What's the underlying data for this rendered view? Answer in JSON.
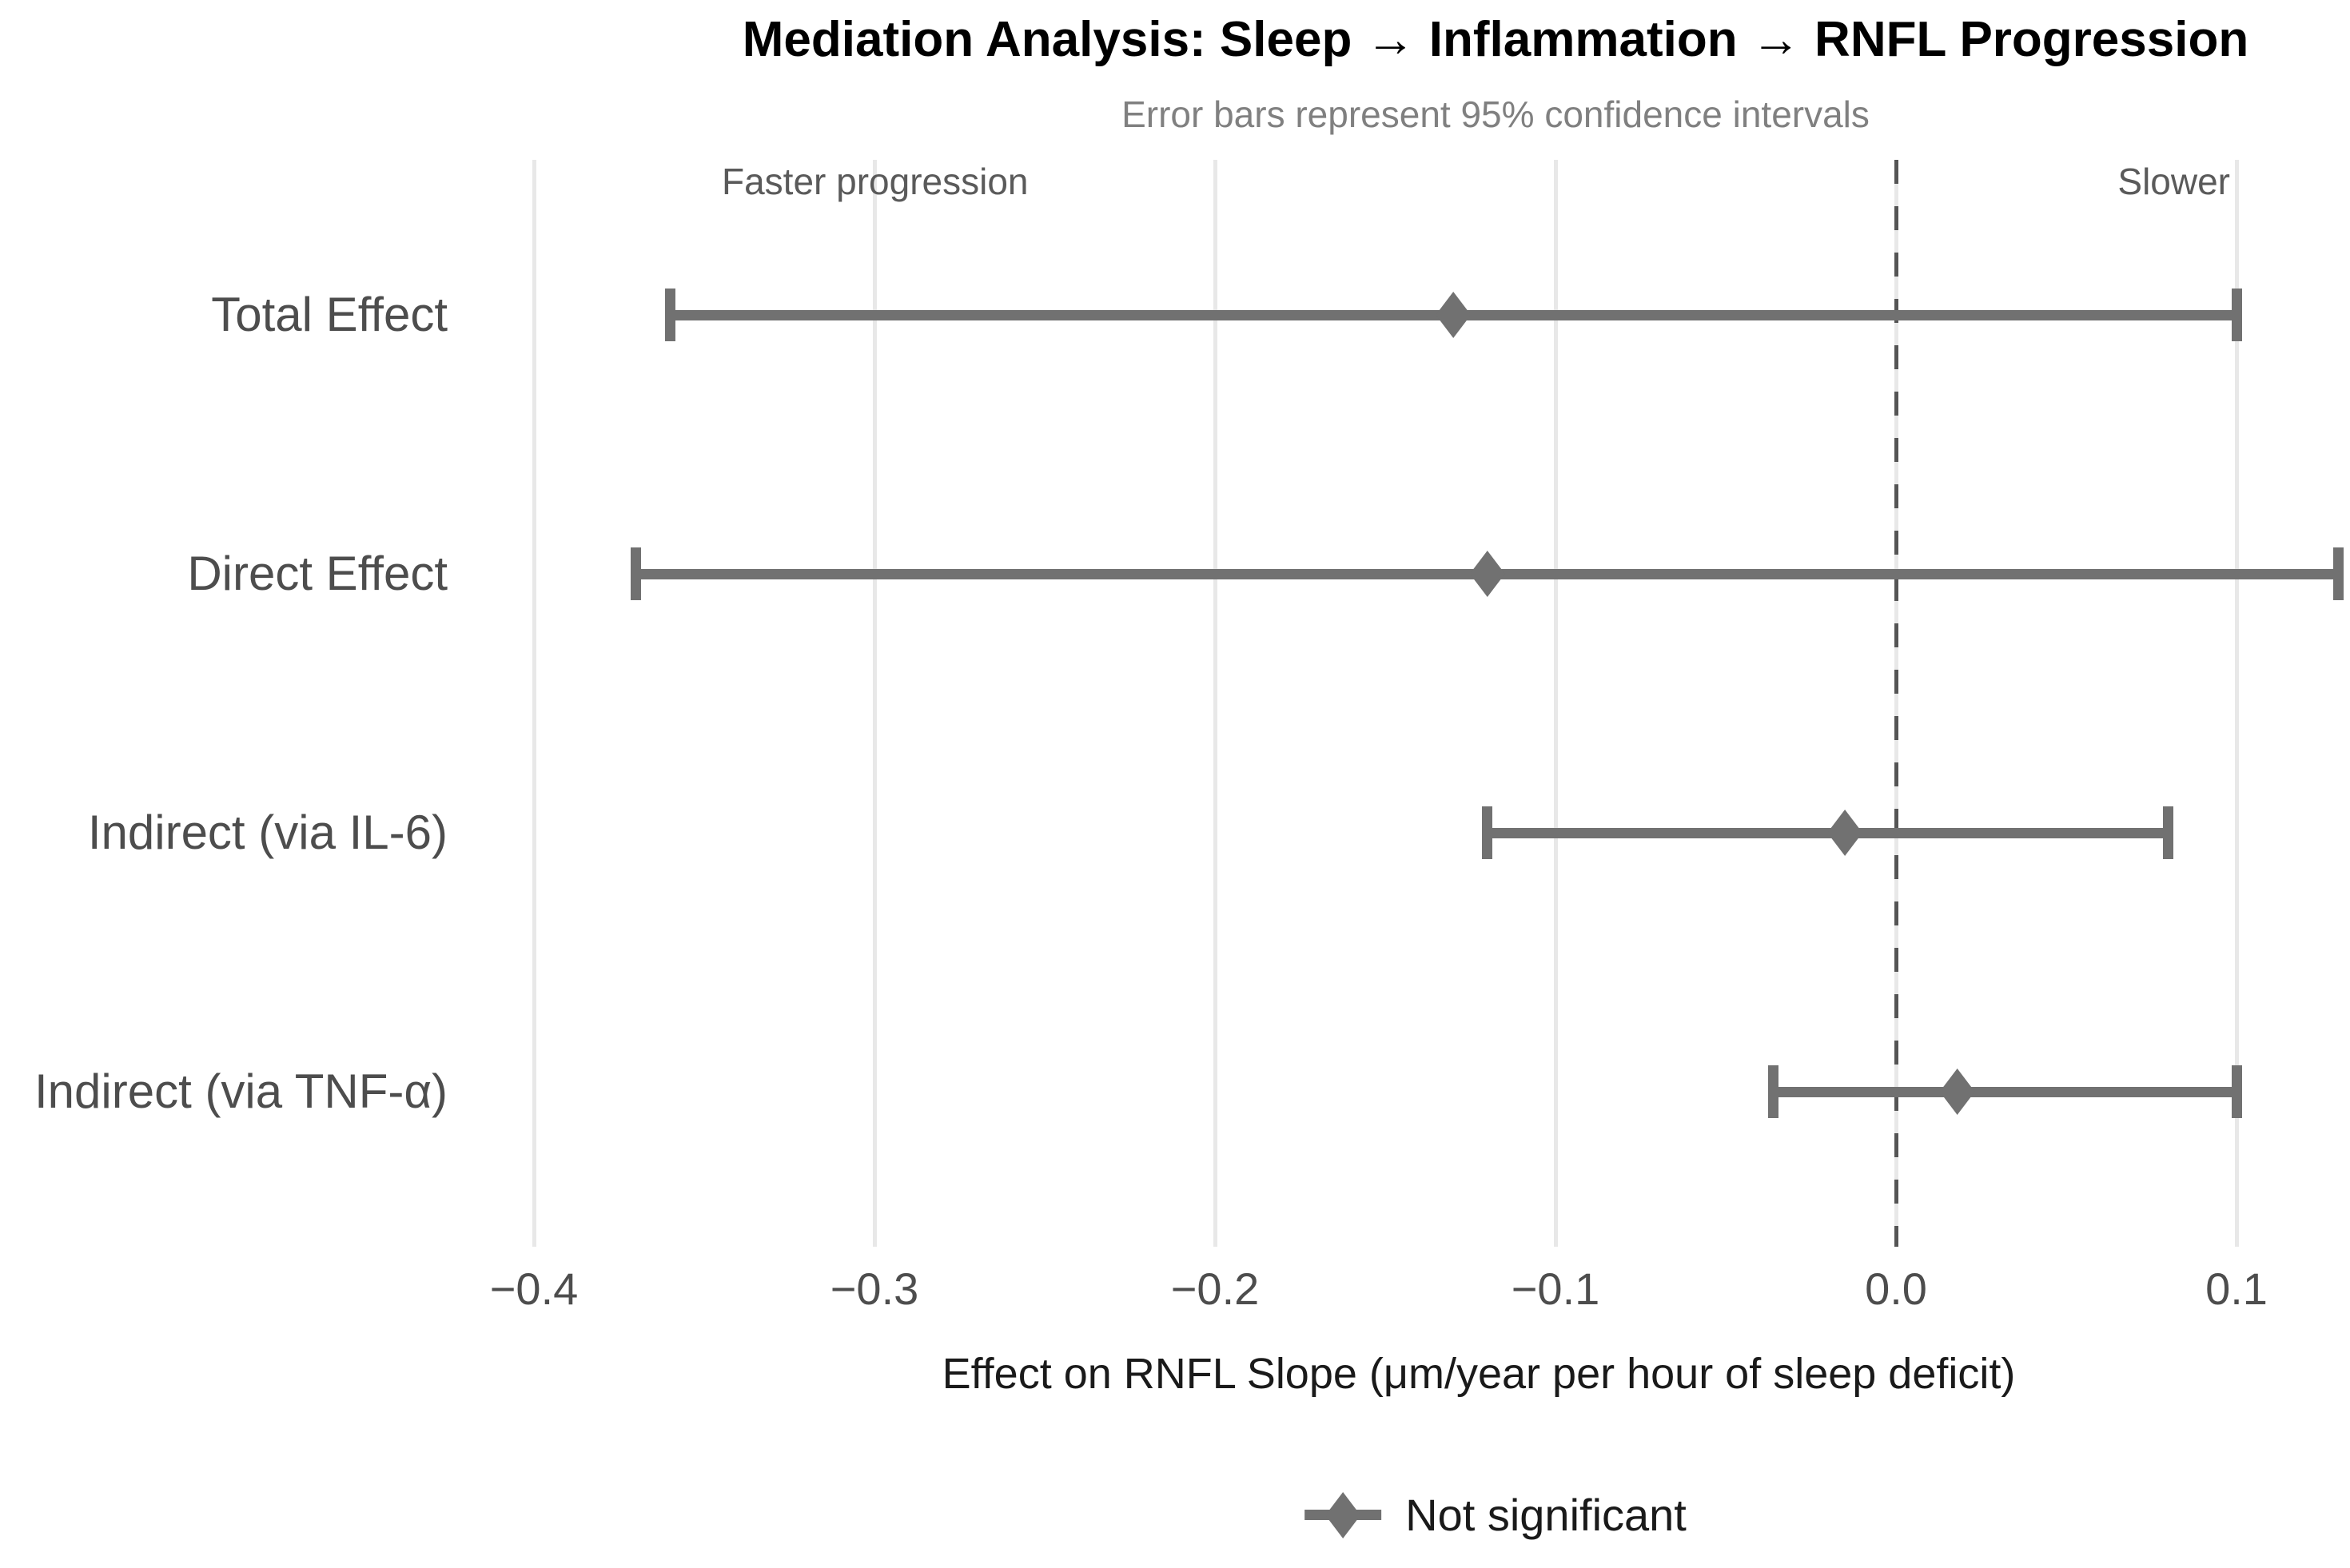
{
  "chart_data": {
    "type": "forest",
    "title": "Mediation Analysis: Sleep → Inflammation → RNFL Progression",
    "subtitle": "Error bars represent 95% confidence intervals",
    "xlabel": "Effect on RNFL Slope (μm/year per hour of sleep deficit)",
    "categories": [
      "Total Effect",
      "Direct Effect",
      "Indirect (via IL-6)",
      "Indirect (via TNF-α)"
    ],
    "series": [
      {
        "name": "Not significant",
        "marker": "diamond",
        "estimates": [
          -0.13,
          -0.12,
          -0.015,
          0.018
        ],
        "ci_low": [
          -0.36,
          -0.37,
          -0.12,
          -0.036
        ],
        "ci_high": [
          0.1,
          0.13,
          0.08,
          0.1
        ]
      }
    ],
    "x_ticks": [
      {
        "value": -0.4,
        "label": "−0.4"
      },
      {
        "value": -0.3,
        "label": "−0.3"
      },
      {
        "value": -0.2,
        "label": "−0.2"
      },
      {
        "value": -0.1,
        "label": "−0.1"
      },
      {
        "value": 0.0,
        "label": "0.0"
      },
      {
        "value": 0.1,
        "label": "0.1"
      }
    ],
    "xlim": [
      -0.406,
      0.133
    ],
    "zero_line": 0.0,
    "annotations": {
      "left": "Faster progression",
      "right": "Slower"
    },
    "legend": {
      "label": "Not significant",
      "marker": "diamond",
      "position": "bottom"
    },
    "grid": "vertical-major-only",
    "colors": {
      "errorbar": "#717171",
      "gridline": "#e8e8e8",
      "zero_line": "#555555",
      "title": "#000000",
      "subtitle": "#808080",
      "axis_text": "#4d4d4d",
      "annotation": "#5a5a5a",
      "legend_text": "#1a1a1a"
    }
  }
}
